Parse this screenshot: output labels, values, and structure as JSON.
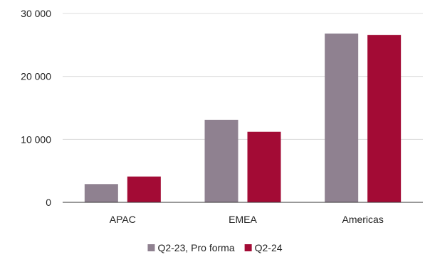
{
  "chart_data": {
    "type": "bar",
    "title": "",
    "xlabel": "",
    "ylabel": "",
    "categories": [
      "APAC",
      "EMEA",
      "Americas"
    ],
    "series": [
      {
        "name": "Q2-23, Pro forma",
        "color": "#8f8190",
        "values": [
          2900,
          13100,
          26800
        ]
      },
      {
        "name": "Q2-24",
        "color": "#a30b35",
        "values": [
          4100,
          11200,
          26600
        ]
      }
    ],
    "ylim": [
      0,
      30000
    ],
    "yticks": [
      0,
      10000,
      20000,
      30000
    ],
    "ytick_labels": [
      "0",
      "10 000",
      "20 000",
      "30 000"
    ],
    "grid": true,
    "legend_position": "bottom-center"
  }
}
